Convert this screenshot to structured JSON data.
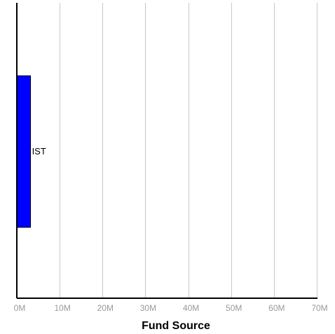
{
  "chart_data": {
    "type": "bar",
    "orientation": "horizontal",
    "categories": [
      "IST"
    ],
    "values": [
      3.2
    ],
    "value_unit": "M",
    "title": "",
    "xlabel": "Fund Source",
    "ylabel": "",
    "xlim": [
      0,
      70
    ],
    "x_ticks": [
      0,
      10,
      20,
      30,
      40,
      50,
      60,
      70
    ],
    "x_tick_labels": [
      "0M",
      "10M",
      "20M",
      "30M",
      "40M",
      "50M",
      "60M",
      "70M"
    ],
    "grid": "vertical",
    "legend": "none",
    "colors": {
      "bar_fill": "#0000ff",
      "bar_stroke": "#000000",
      "grid": "#c8c8c8",
      "axis": "#000000",
      "tick_label": "#999999"
    }
  }
}
